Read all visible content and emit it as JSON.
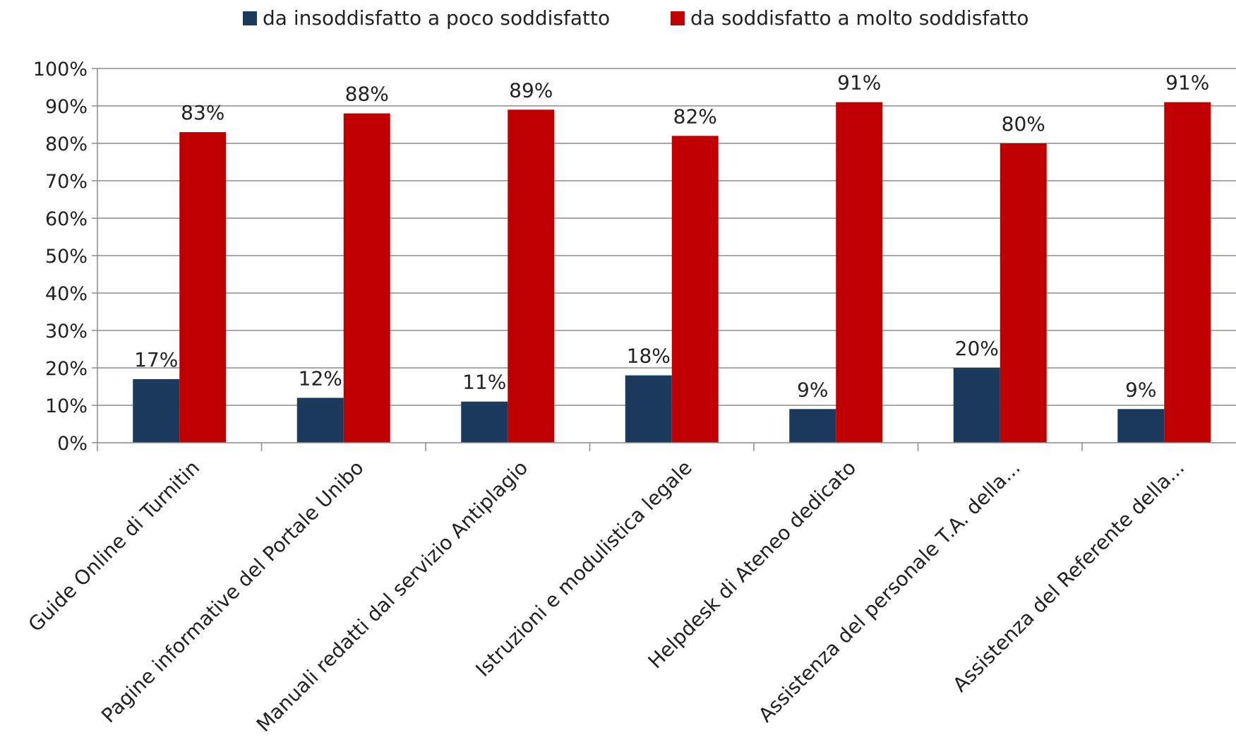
{
  "chart_data": {
    "type": "bar",
    "categories": [
      "Guide Online di Turnitin",
      "Pagine informative del Portale Unibo",
      "Manuali redatti dal servizio Antiplagio",
      "Istruzioni e modulistica legale",
      "Helpdesk di Ateneo dedicato",
      "Assistenza del personale T.A. della...",
      "Assistenza del Referente della..."
    ],
    "series": [
      {
        "name": "da insoddisfatto a poco soddisfatto",
        "color": "#1b3a5e",
        "values": [
          17,
          12,
          11,
          18,
          9,
          20,
          9
        ],
        "labels": [
          "17%",
          "12%",
          "11%",
          "18%",
          "9%",
          "20%",
          "9%"
        ]
      },
      {
        "name": "da soddisfatto a molto soddisfatto",
        "color": "#c00000",
        "values": [
          83,
          88,
          89,
          82,
          91,
          80,
          91
        ],
        "labels": [
          "83%",
          "88%",
          "89%",
          "82%",
          "91%",
          "80%",
          "91%"
        ]
      }
    ],
    "ylim": [
      0,
      100
    ],
    "yticks": [
      "0%",
      "10%",
      "20%",
      "30%",
      "40%",
      "50%",
      "60%",
      "70%",
      "80%",
      "90%",
      "100%"
    ],
    "grid": true,
    "legend_position": "top",
    "title": "",
    "xlabel": "",
    "ylabel": ""
  }
}
